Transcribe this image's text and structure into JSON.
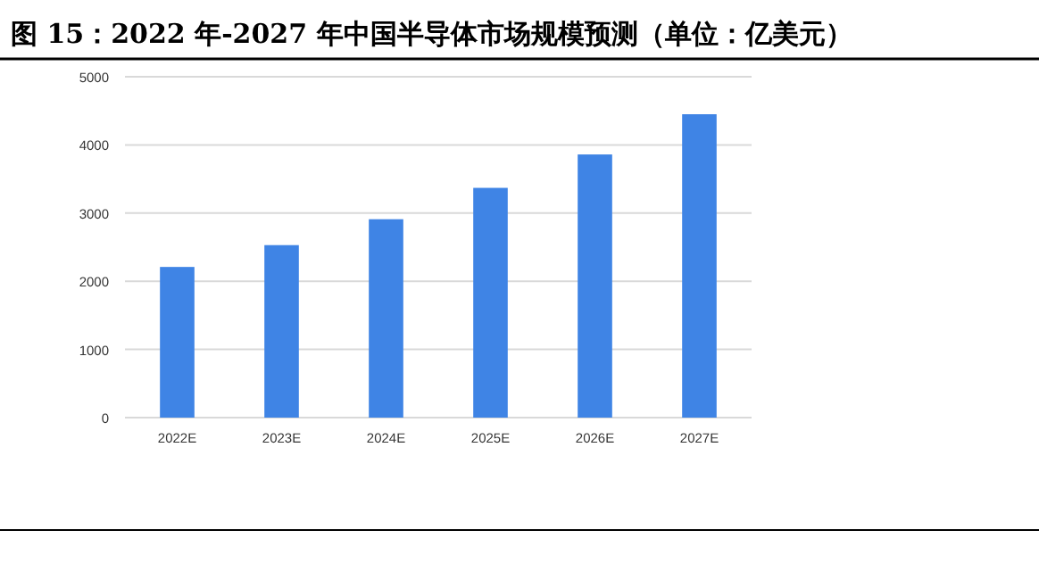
{
  "chart_data": {
    "type": "bar",
    "title": "图 15：2022 年-2027 年中国半导体市场规模预测（单位：亿美元）",
    "categories": [
      "2022E",
      "2023E",
      "2024E",
      "2025E",
      "2026E",
      "2027E"
    ],
    "values": [
      2210,
      2530,
      2910,
      3370,
      3860,
      4450
    ],
    "color": "#3f84e5",
    "ylim": [
      0,
      5000
    ],
    "yticks": [
      0,
      1000,
      2000,
      3000,
      4000,
      5000
    ],
    "grid": "y"
  }
}
